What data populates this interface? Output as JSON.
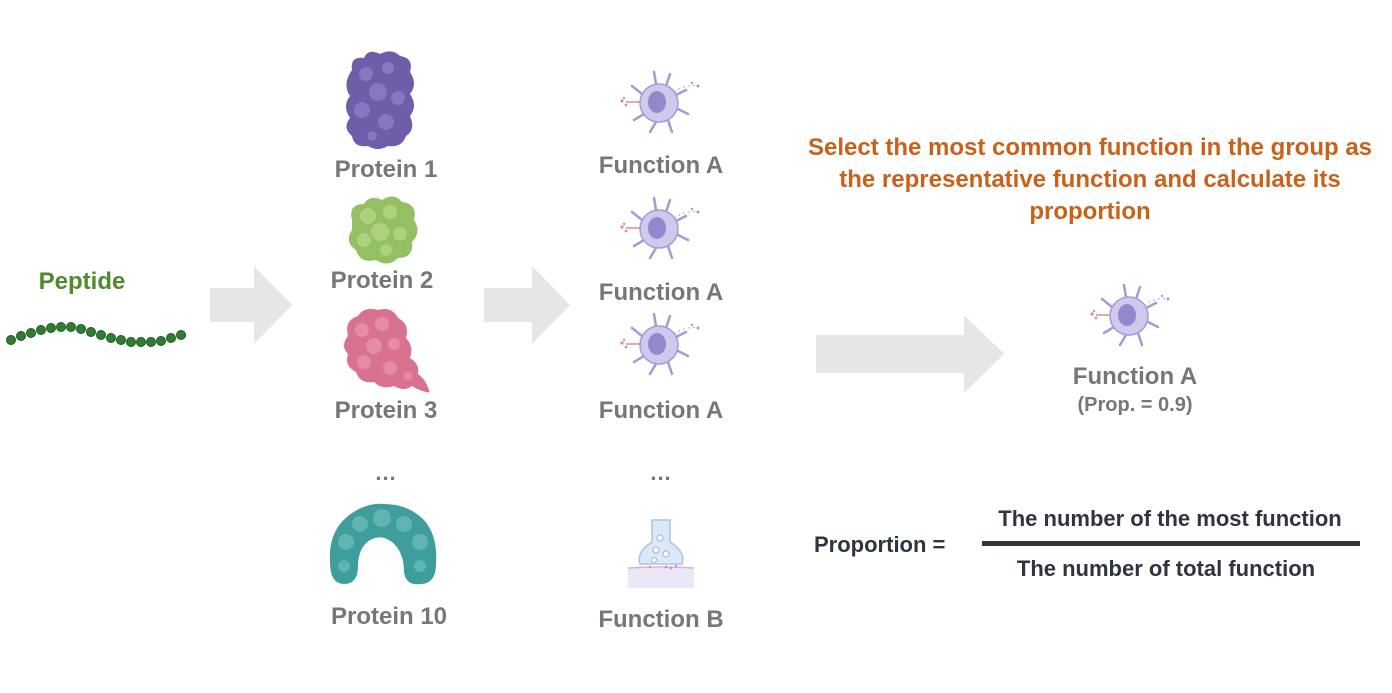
{
  "peptide": {
    "label": "Peptide",
    "icon": "peptide-chain-icon"
  },
  "proteins": [
    {
      "label": "Protein 1",
      "icon": "protein-blob-icon",
      "color": "#6e5da8"
    },
    {
      "label": "Protein 2",
      "icon": "protein-blob-icon",
      "color": "#95bf63"
    },
    {
      "label": "Protein 3",
      "icon": "protein-blob-icon",
      "color": "#d9728f"
    },
    {
      "label": "Protein 10",
      "icon": "protein-arch-icon",
      "color": "#3f9e9b"
    }
  ],
  "protein_ellipsis": "...",
  "functions": [
    {
      "label": "Function A",
      "icon": "immune-cell-icon"
    },
    {
      "label": "Function A",
      "icon": "immune-cell-icon"
    },
    {
      "label": "Function A",
      "icon": "immune-cell-icon"
    },
    {
      "label": "Function B",
      "icon": "synapse-icon"
    }
  ],
  "function_ellipsis": "...",
  "instruction": "Select the most common function in the group as the representative function and calculate its proportion",
  "result": {
    "label": "Function A",
    "proportion": "(Prop. = 0.9)",
    "icon": "immune-cell-icon"
  },
  "formula": {
    "label": "Proportion =",
    "numerator": "The number of the most function",
    "denominator": "The number of total function"
  },
  "colors": {
    "arrow": "#e6e6e6",
    "instruction": "#c8621b",
    "label": "#777777",
    "formula": "#2e3440",
    "peptide": "#4e8a2e"
  }
}
